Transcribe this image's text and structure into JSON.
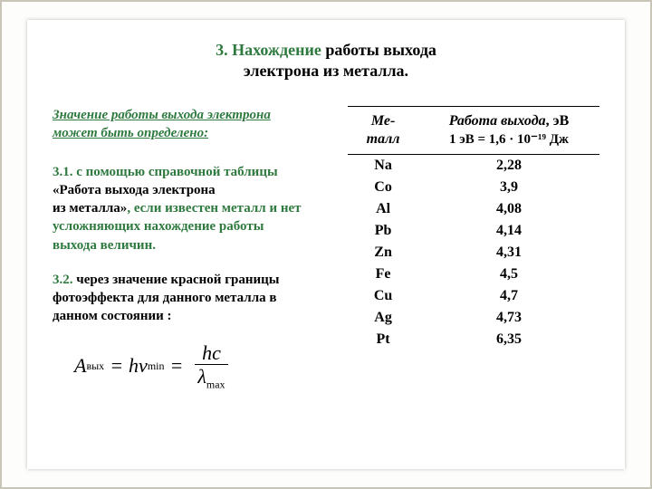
{
  "title": {
    "num": "3.",
    "line1_accent": "Нахождение",
    "line1_black": "работы выхода",
    "line2": "электрона из металла."
  },
  "subtitle": {
    "l1": "Значение работы выхода электрона",
    "l2": "может быть определено:"
  },
  "p31": {
    "num": "3.1.",
    "a1": "с помощью справочной таблицы",
    "b1": "«Работа выхода электрона",
    "b2": "из металла»",
    "a2": ", если известен металл и нет",
    "a3": "усложняющих нахождение работы",
    "a4": "выхода величин."
  },
  "p32": {
    "num": "3.2.",
    "t1": "через значение красной границы",
    "t2": "фотоэффекта для данного металла в",
    "t3": "данном состоянии :"
  },
  "formula": {
    "A": "A",
    "A_sub": "вых",
    "eq": "=",
    "hv": "hν",
    "min": "min",
    "hc": "hc",
    "lambda": "λ",
    "max": "max"
  },
  "table": {
    "head_metal_l1": "Ме-",
    "head_metal_l2": "талл",
    "head_work_it": "Работа выхода",
    "head_work_tail": ", эВ",
    "head_work_sub": "1 эВ = 1,6 · 10⁻¹⁹ Дж",
    "rows": [
      {
        "m": "Na",
        "w": "2,28"
      },
      {
        "m": "Co",
        "w": "3,9"
      },
      {
        "m": "Al",
        "w": "4,08"
      },
      {
        "m": "Pb",
        "w": "4,14"
      },
      {
        "m": "Zn",
        "w": "4,31"
      },
      {
        "m": "Fe",
        "w": "4,5"
      },
      {
        "m": "Cu",
        "w": "4,7"
      },
      {
        "m": "Ag",
        "w": "4,73"
      },
      {
        "m": "Pt",
        "w": "6,35"
      }
    ]
  },
  "style": {
    "accent_color": "#2e7a3f"
  }
}
